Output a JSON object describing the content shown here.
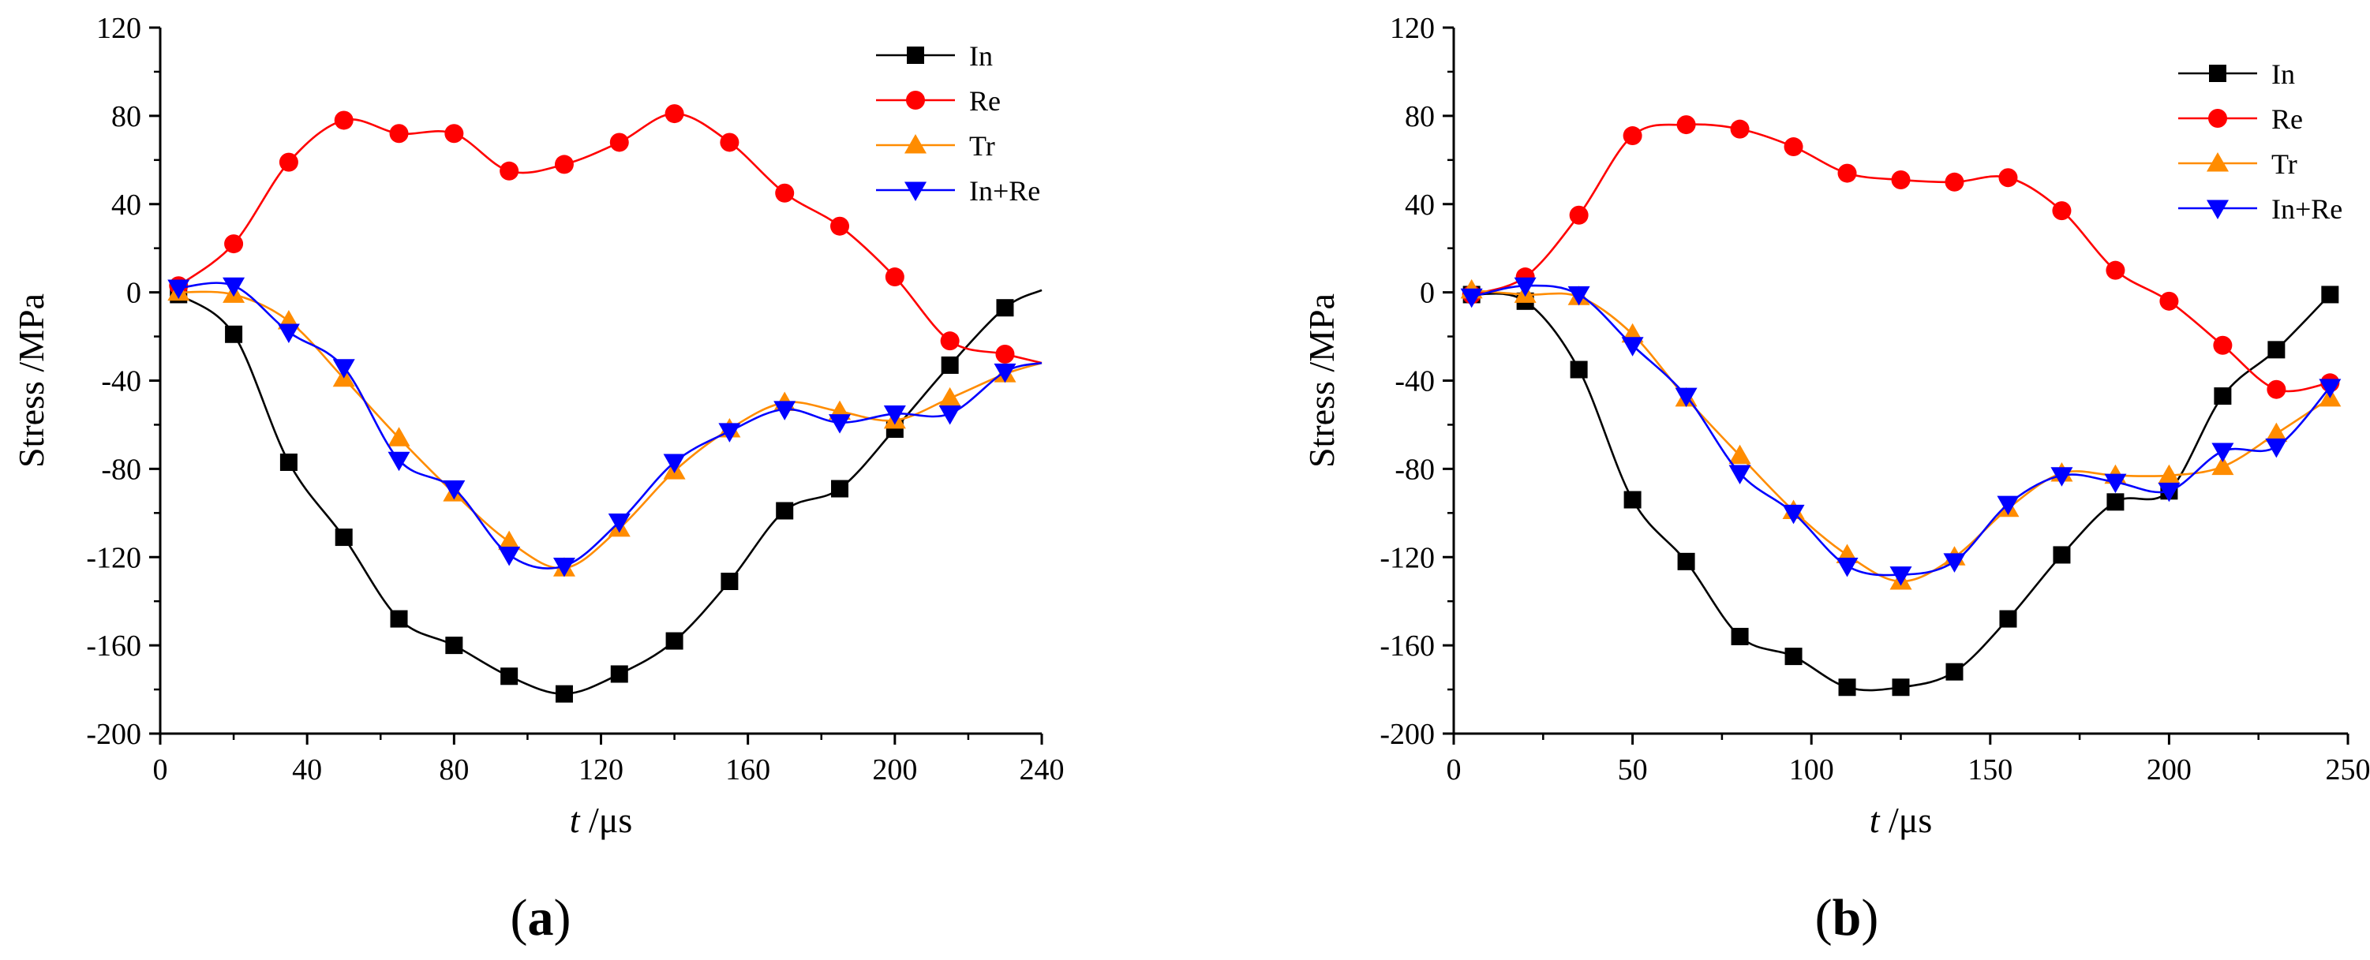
{
  "panel_labels": [
    "(a)",
    "(b)"
  ],
  "series_colors": {
    "In": "#000000",
    "Re": "#ff0000",
    "Tr": "#ff8c00",
    "In+Re": "#0000ff"
  },
  "series_markers": {
    "In": "square",
    "Re": "circle",
    "Tr": "triangle-up",
    "In+Re": "triangle-down"
  },
  "chart_data": [
    {
      "type": "line",
      "panel_label": "(a)",
      "xlabel_var": "t",
      "xlabel_unit": "/μs",
      "ylabel": "Stress /MPa",
      "xlim": [
        0,
        240
      ],
      "ylim": [
        -200,
        120
      ],
      "xticks": [
        0,
        40,
        80,
        120,
        160,
        200,
        240
      ],
      "yticks": [
        -200,
        -160,
        -120,
        -80,
        -40,
        0,
        40,
        80,
        120
      ],
      "grid": false,
      "legend_position": "top-right",
      "legend": [
        "In",
        "Re",
        "Tr",
        "In+Re"
      ],
      "series": [
        {
          "name": "In",
          "x": [
            5,
            20,
            35,
            50,
            65,
            80,
            95,
            110,
            125,
            140,
            155,
            170,
            185,
            200,
            215,
            230,
            240
          ],
          "y": [
            -1,
            -19,
            -77,
            -111,
            -148,
            -160,
            -174,
            -182,
            -173,
            -158,
            -131,
            -99,
            -89,
            -62,
            -33,
            -7,
            1
          ]
        },
        {
          "name": "Re",
          "x": [
            5,
            20,
            35,
            50,
            65,
            80,
            95,
            110,
            125,
            140,
            155,
            170,
            185,
            200,
            215,
            230,
            240
          ],
          "y": [
            3,
            22,
            59,
            78,
            72,
            72,
            55,
            58,
            68,
            81,
            68,
            45,
            30,
            7,
            -22,
            -28,
            -32
          ]
        },
        {
          "name": "Tr",
          "x": [
            5,
            20,
            35,
            50,
            65,
            80,
            95,
            110,
            125,
            140,
            155,
            170,
            185,
            200,
            215,
            230,
            240
          ],
          "y": [
            0,
            -1,
            -13,
            -39,
            -66,
            -91,
            -113,
            -125,
            -107,
            -81,
            -62,
            -50,
            -54,
            -58,
            -48,
            -37,
            -32
          ]
        },
        {
          "name": "In+Re",
          "x": [
            5,
            20,
            35,
            50,
            65,
            80,
            95,
            110,
            125,
            140,
            155,
            170,
            185,
            200,
            215,
            230,
            240
          ],
          "y": [
            2,
            3,
            -18,
            -34,
            -76,
            -89,
            -119,
            -124,
            -104,
            -77,
            -63,
            -53,
            -59,
            -55,
            -55,
            -36,
            -32
          ]
        }
      ]
    },
    {
      "type": "line",
      "panel_label": "(b)",
      "xlabel_var": "t",
      "xlabel_unit": "/μs",
      "ylabel": "Stress /MPa",
      "xlim": [
        0,
        250
      ],
      "ylim": [
        -200,
        120
      ],
      "xticks": [
        0,
        50,
        100,
        150,
        200,
        250
      ],
      "yticks": [
        -200,
        -160,
        -120,
        -80,
        -40,
        0,
        40,
        80,
        120
      ],
      "grid": false,
      "legend_position": "top-right",
      "legend": [
        "In",
        "Re",
        "Tr",
        "In+Re"
      ],
      "series": [
        {
          "name": "In",
          "x": [
            5,
            20,
            35,
            50,
            65,
            80,
            95,
            110,
            125,
            140,
            155,
            170,
            185,
            200,
            215,
            230,
            245
          ],
          "y": [
            -1,
            -4,
            -35,
            -94,
            -122,
            -156,
            -165,
            -179,
            -179,
            -172,
            -148,
            -119,
            -95,
            -90,
            -47,
            -26,
            -1
          ]
        },
        {
          "name": "Re",
          "x": [
            5,
            20,
            35,
            50,
            65,
            80,
            95,
            110,
            125,
            140,
            155,
            170,
            185,
            200,
            215,
            230,
            245
          ],
          "y": [
            -1,
            7,
            35,
            71,
            76,
            74,
            66,
            54,
            51,
            50,
            52,
            37,
            10,
            -4,
            -24,
            -44,
            -41
          ]
        },
        {
          "name": "Tr",
          "x": [
            5,
            20,
            35,
            50,
            65,
            80,
            95,
            110,
            125,
            140,
            155,
            170,
            185,
            200,
            215,
            230,
            245
          ],
          "y": [
            1,
            -1,
            -2,
            -19,
            -48,
            -74,
            -99,
            -119,
            -131,
            -120,
            -98,
            -82,
            -83,
            -83,
            -79,
            -64,
            -48
          ]
        },
        {
          "name": "In+Re",
          "x": [
            5,
            20,
            35,
            50,
            65,
            80,
            95,
            110,
            125,
            140,
            155,
            170,
            185,
            200,
            215,
            230,
            245
          ],
          "y": [
            -2,
            3,
            -1,
            -24,
            -47,
            -82,
            -100,
            -124,
            -128,
            -122,
            -96,
            -83,
            -86,
            -90,
            -72,
            -70,
            -43
          ]
        }
      ]
    }
  ]
}
